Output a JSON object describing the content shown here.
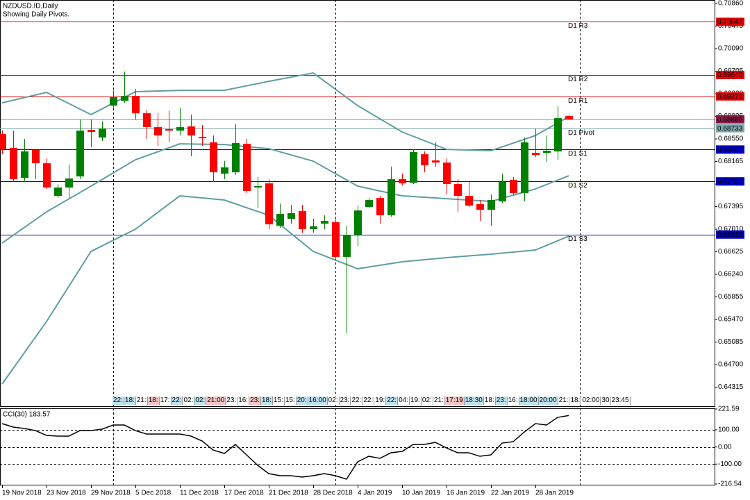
{
  "chart_data": [
    {
      "type": "candlestick",
      "title": "NZDUSD.ID,Daily",
      "subtitle": "Showing Daily Pivots.",
      "categories": [
        "19 Nov 2018",
        null,
        null,
        null,
        "23 Nov 2018",
        null,
        null,
        null,
        "29 Nov 2018",
        null,
        null,
        null,
        "5 Dec 2018",
        null,
        null,
        null,
        "11 Dec 2018",
        null,
        null,
        null,
        "17 Dec 2018",
        null,
        null,
        null,
        "21 Dec 2018",
        null,
        null,
        null,
        "28 Dec 2018",
        null,
        null,
        null,
        "4 Jan 2019",
        null,
        null,
        null,
        "10 Jan 2019",
        null,
        null,
        null,
        "16 Jan 2019",
        null,
        null,
        null,
        "22 Jan 2019",
        null,
        null,
        null,
        "28 Jan 2019",
        null,
        null,
        null
      ],
      "open": [
        0.68633,
        0.68396,
        0.67887,
        0.68361,
        0.68135,
        0.67579,
        0.67721,
        0.6791,
        0.68704,
        0.68574,
        0.69119,
        0.69202,
        0.69285,
        0.68988,
        0.68751,
        0.68716,
        0.68692,
        0.68763,
        0.68586,
        0.68491,
        0.67958,
        0.67981,
        0.68467,
        0.67721,
        0.67792,
        0.6707,
        0.67188,
        0.67318,
        0.6701,
        0.67105,
        0.67129,
        0.66537,
        0.66916,
        0.67389,
        0.67543,
        0.67247,
        0.67863,
        0.67804,
        0.68289,
        0.68183,
        0.68147,
        0.6778,
        0.67579,
        0.67437,
        0.67342,
        0.67484,
        0.67851,
        0.67626,
        0.68313,
        0.68313,
        0.68337,
        0.68941
      ],
      "high": [
        0.68692,
        0.68692,
        0.6855,
        0.68384,
        0.68218,
        0.6778,
        0.68112,
        0.68882,
        0.68882,
        0.68846,
        0.69379,
        0.69699,
        0.69403,
        0.69048,
        0.68988,
        0.69024,
        0.69083,
        0.68965,
        0.68787,
        0.68609,
        0.68171,
        0.68811,
        0.6855,
        0.67899,
        0.67863,
        0.67449,
        0.67425,
        0.67425,
        0.67188,
        0.67247,
        0.67176,
        0.6707,
        0.67413,
        0.67543,
        0.67579,
        0.68076,
        0.67958,
        0.68372,
        0.68337,
        0.68491,
        0.68218,
        0.67863,
        0.67839,
        0.67508,
        0.67603,
        0.67958,
        0.67899,
        0.68574,
        0.68728,
        0.68609,
        0.69107,
        0.68953
      ],
      "low": [
        0.68289,
        0.67816,
        0.67816,
        0.67863,
        0.67697,
        0.67543,
        0.67543,
        0.67863,
        0.68408,
        0.68515,
        0.69083,
        0.69166,
        0.68882,
        0.6855,
        0.68432,
        0.68491,
        0.68609,
        0.68254,
        0.68432,
        0.67816,
        0.67863,
        0.67934,
        0.67626,
        0.67366,
        0.6701,
        0.67034,
        0.67105,
        0.66951,
        0.66951,
        0.6701,
        0.66477,
        0.65234,
        0.66714,
        0.67366,
        0.67105,
        0.67224,
        0.67757,
        0.6778,
        0.67981,
        0.68076,
        0.67603,
        0.67306,
        0.67389,
        0.67152,
        0.6707,
        0.6746,
        0.67603,
        0.67484,
        0.68242,
        0.68159,
        0.68195,
        0.6887
      ],
      "close": [
        0.68372,
        0.67863,
        0.68337,
        0.68135,
        0.67721,
        0.67721,
        0.67875,
        0.68692,
        0.68669,
        0.68728,
        0.69261,
        0.69285,
        0.68988,
        0.68751,
        0.68609,
        0.68692,
        0.68751,
        0.68609,
        0.68562,
        0.67981,
        0.68064,
        0.68479,
        0.67662,
        0.67745,
        0.67093,
        0.67271,
        0.67283,
        0.6701,
        0.67058,
        0.67152,
        0.66537,
        0.66916,
        0.6733,
        0.67508,
        0.67247,
        0.67863,
        0.67792,
        0.68325,
        0.681,
        0.68147,
        0.6778,
        0.67579,
        0.67413,
        0.67342,
        0.67508,
        0.67816,
        0.67626,
        0.68491,
        0.68278,
        0.68349,
        0.68905,
        0.68886
      ],
      "up_color": "#008000",
      "down_color": "#ff0000",
      "bands": {
        "color": "#5f9ea0",
        "x": [
          0,
          4,
          8,
          12,
          16,
          20,
          24,
          28,
          32,
          36,
          40,
          44,
          48,
          51
        ],
        "upper": [
          0.69166,
          0.69344,
          0.68965,
          0.69356,
          0.69379,
          0.69379,
          0.69533,
          0.69676,
          0.69119,
          0.68669,
          0.68372,
          0.68349,
          0.68609,
          0.68929
        ],
        "middle": [
          0.66773,
          0.67306,
          0.67745,
          0.68195,
          0.68467,
          0.68455,
          0.68384,
          0.68171,
          0.67745,
          0.67579,
          0.67531,
          0.67484,
          0.67697,
          0.67922
        ],
        "lower": [
          0.64369,
          0.65435,
          0.66631,
          0.6701,
          0.67579,
          0.67508,
          0.67247,
          0.66631,
          0.66335,
          0.66454,
          0.66525,
          0.66584,
          0.66655,
          0.66892
        ]
      },
      "pivots": [
        {
          "name": "D1 R3",
          "value": 0.70547,
          "color": "#e00000"
        },
        {
          "name": "D1 R2",
          "value": 0.6964,
          "label": "0.69640",
          "color": "#e00000"
        },
        {
          "name": "D1 R1",
          "value": 0.69276,
          "color": "#e00000"
        },
        {
          "name": "D1 Pivot",
          "value": 0.68733,
          "color": "#7fa8a8"
        },
        {
          "name": "D1 S1",
          "value": 0.68369,
          "color": "#0000c0"
        },
        {
          "name": "D1 S2",
          "value": 0.67826,
          "color": "#0000c0"
        },
        {
          "name": "D1 S3",
          "value": 0.66919,
          "color": "#0000c0"
        }
      ],
      "last_price": {
        "value": 0.68886,
        "color": "#8b1a4a"
      },
      "ylim": [
        0.6399,
        0.7092
      ],
      "yticks": [
        {
          "value": 0.7086,
          "label": "0.70860"
        },
        0.70475,
        {
          "value": 0.7009,
          "label": "0.70090"
        },
        0.69705,
        {
          "value": 0.6932,
          "label": "0.69320"
        },
        0.68935,
        {
          "value": 0.6855,
          "label": "0.68550"
        },
        0.68165,
        {
          "value": 0.6778,
          "label": "0.67780"
        },
        0.67395,
        {
          "value": 0.6701,
          "label": "0.67010"
        },
        0.66625,
        {
          "value": 0.6624,
          "label": "0.66240"
        },
        0.65855,
        {
          "value": 0.6547,
          "label": "0.65470"
        },
        0.65085,
        {
          "value": 0.647,
          "label": "0.64700"
        },
        0.64315
      ],
      "session_labels": [
        {
          "text": "22:",
          "bg": "#bfe3f0"
        },
        {
          "text": "18:",
          "bg": "#bfe3f0"
        },
        {
          "text": "21:",
          "bg": "#ffffff"
        },
        {
          "text": "18:",
          "bg": "#f5c6c6"
        },
        {
          "text": "17:",
          "bg": "#ffffff"
        },
        {
          "text": "22:",
          "bg": "#bfe3f0"
        },
        {
          "text": "02:",
          "bg": "#ffffff"
        },
        {
          "text": "02:",
          "bg": "#bfe3f0"
        },
        {
          "text": "21:00",
          "bg": "#f5c6c6"
        },
        {
          "text": "23:",
          "bg": "#ffffff"
        },
        {
          "text": "16:",
          "bg": "#ffffff"
        },
        {
          "text": "23:",
          "bg": "#f5c6c6"
        },
        {
          "text": "18:",
          "bg": "#bfe3f0"
        },
        {
          "text": "15:",
          "bg": "#ffffff"
        },
        {
          "text": "15:",
          "bg": "#ffffff"
        },
        {
          "text": "20:",
          "bg": "#bfe3f0"
        },
        {
          "text": "16:00",
          "bg": "#bfe3f0"
        },
        {
          "text": "02:",
          "bg": "#ffffff"
        },
        {
          "text": "23:",
          "bg": "#ffffff"
        },
        {
          "text": "22:",
          "bg": "#ffffff"
        },
        {
          "text": "22:",
          "bg": "#ffffff"
        },
        {
          "text": "19:",
          "bg": "#ffffff"
        },
        {
          "text": "22:",
          "bg": "#bfe3f0"
        },
        {
          "text": "04:",
          "bg": "#ffffff"
        },
        {
          "text": "19:",
          "bg": "#ffffff"
        },
        {
          "text": "02:",
          "bg": "#ffffff"
        },
        {
          "text": "21:",
          "bg": "#ffffff"
        },
        {
          "text": "17:19",
          "bg": "#f5c6c6"
        },
        {
          "text": "18:30",
          "bg": "#bfe3f0"
        },
        {
          "text": "18:",
          "bg": "#ffffff"
        },
        {
          "text": "23:",
          "bg": "#bfe3f0"
        },
        {
          "text": "16:",
          "bg": "#ffffff"
        },
        {
          "text": "18:00",
          "bg": "#bfe3f0"
        },
        {
          "text": "20:00",
          "bg": "#bfe3f0"
        },
        {
          "text": "21:",
          "bg": "#ffffff"
        },
        {
          "text": "18:",
          "bg": "#ffffff"
        },
        {
          "text": "02:00",
          "bg": "#ffffff"
        },
        {
          "text": "30",
          "bg": "#ffffff"
        },
        {
          "text": "23:45",
          "bg": "#ffffff"
        }
      ]
    },
    {
      "type": "line",
      "title": "CCI(30) 183.57",
      "color": "#000000",
      "values": [
        136.3,
        116.0,
        107.9,
        95.7,
        67.3,
        63.3,
        63.3,
        95.7,
        95.7,
        103.9,
        128.2,
        128.2,
        95.7,
        75.5,
        75.5,
        75.5,
        75.5,
        63.3,
        34.9,
        -17.9,
        -38.1,
        14.6,
        -46.2,
        -107.1,
        -155.8,
        -168.0,
        -168.0,
        -176.1,
        -168.0,
        -155.8,
        -168.0,
        -188.2,
        -86.8,
        -54.4,
        -66.5,
        -34.1,
        -26.0,
        14.6,
        14.6,
        26.8,
        -5.7,
        -34.1,
        -34.1,
        -54.4,
        -46.2,
        22.7,
        30.8,
        87.6,
        136.3,
        128.2,
        172.8,
        183.57
      ],
      "ylim": [
        -216.54,
        221.59
      ],
      "yticks": [
        221.59,
        {
          "value": 100,
          "label": "100.00"
        },
        {
          "value": 0,
          "label": "0.00"
        },
        {
          "value": -100,
          "label": "-100.00"
        },
        -216.54
      ]
    }
  ]
}
